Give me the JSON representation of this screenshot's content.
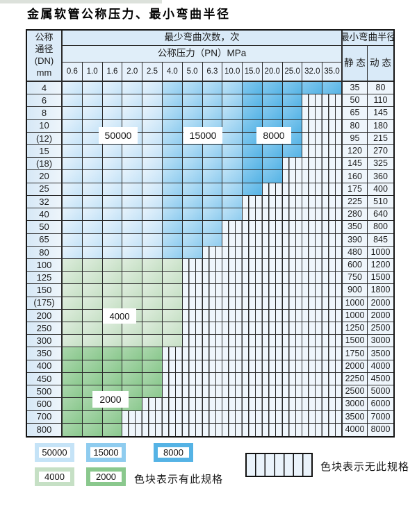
{
  "page": {
    "title": "金属软管公称压力、最小弯曲半径"
  },
  "table": {
    "header": {
      "dn_lines": [
        "公称",
        "通径",
        "(DN)",
        "mm"
      ],
      "bend_cycles": "最少弯曲次数，次",
      "pressure": "公称压力（PN）MPa",
      "radius": "最小弯曲半径",
      "static_col": "静 态",
      "dynamic_col": "动 态"
    },
    "pressure_columns": [
      "0.6",
      "1.0",
      "1.6",
      "2.0",
      "2.5",
      "4.0",
      "5.0",
      "6.3",
      "10.0",
      "15.0",
      "20.0",
      "25.0",
      "32.0",
      "35.0"
    ],
    "rows": [
      {
        "dn": "4",
        "zone": "blue",
        "colored": 14,
        "static": "35",
        "dynamic": "80"
      },
      {
        "dn": "6",
        "zone": "blue",
        "colored": 12,
        "static": "50",
        "dynamic": "110"
      },
      {
        "dn": "8",
        "zone": "blue",
        "colored": 12,
        "static": "65",
        "dynamic": "145"
      },
      {
        "dn": "10",
        "zone": "blue",
        "colored": 12,
        "static": "80",
        "dynamic": "180"
      },
      {
        "dn": "(12)",
        "zone": "blue",
        "colored": 12,
        "static": "95",
        "dynamic": "215"
      },
      {
        "dn": "15",
        "zone": "blue",
        "colored": 12,
        "static": "120",
        "dynamic": "270"
      },
      {
        "dn": "(18)",
        "zone": "blue",
        "colored": 11,
        "static": "145",
        "dynamic": "325"
      },
      {
        "dn": "20",
        "zone": "blue",
        "colored": 11,
        "static": "160",
        "dynamic": "360"
      },
      {
        "dn": "25",
        "zone": "blue",
        "colored": 10,
        "static": "175",
        "dynamic": "400"
      },
      {
        "dn": "32",
        "zone": "blue",
        "colored": 9,
        "static": "225",
        "dynamic": "510"
      },
      {
        "dn": "40",
        "zone": "blue",
        "colored": 9,
        "static": "280",
        "dynamic": "640"
      },
      {
        "dn": "50",
        "zone": "blue",
        "colored": 8,
        "static": "350",
        "dynamic": "800"
      },
      {
        "dn": "65",
        "zone": "blue",
        "colored": 8,
        "static": "390",
        "dynamic": "845"
      },
      {
        "dn": "80",
        "zone": "blue",
        "colored": 7,
        "static": "480",
        "dynamic": "1000"
      },
      {
        "dn": "100",
        "zone": "z4000",
        "colored": 6,
        "static": "600",
        "dynamic": "1200"
      },
      {
        "dn": "125",
        "zone": "z4000",
        "colored": 6,
        "static": "750",
        "dynamic": "1500"
      },
      {
        "dn": "150",
        "zone": "z4000",
        "colored": 6,
        "static": "900",
        "dynamic": "1800"
      },
      {
        "dn": "(175)",
        "zone": "z4000",
        "colored": 6,
        "static": "1000",
        "dynamic": "2000"
      },
      {
        "dn": "200",
        "zone": "z4000",
        "colored": 6,
        "static": "1000",
        "dynamic": "2000"
      },
      {
        "dn": "250",
        "zone": "z4000",
        "colored": 6,
        "static": "1250",
        "dynamic": "2500"
      },
      {
        "dn": "300",
        "zone": "z4000",
        "colored": 6,
        "static": "1500",
        "dynamic": "3000"
      },
      {
        "dn": "350",
        "zone": "z2000",
        "colored": 5,
        "static": "1750",
        "dynamic": "3500"
      },
      {
        "dn": "400",
        "zone": "z2000",
        "colored": 5,
        "static": "2000",
        "dynamic": "4000"
      },
      {
        "dn": "450",
        "zone": "z2000",
        "colored": 5,
        "static": "2250",
        "dynamic": "4500"
      },
      {
        "dn": "500",
        "zone": "z2000",
        "colored": 5,
        "static": "2500",
        "dynamic": "5000"
      },
      {
        "dn": "600",
        "zone": "z2000",
        "colored": 4,
        "static": "3000",
        "dynamic": "6000"
      },
      {
        "dn": "700",
        "zone": "z2000",
        "colored": 3,
        "static": "3500",
        "dynamic": "7000"
      },
      {
        "dn": "800",
        "zone": "z2000",
        "colored": 3,
        "static": "4000",
        "dynamic": "8000"
      }
    ]
  },
  "zones": {
    "blue_ranges": [
      {
        "from": 0,
        "to": 4,
        "key": "z50000"
      },
      {
        "from": 5,
        "to": 8,
        "key": "z15000"
      },
      {
        "from": 9,
        "to": 13,
        "key": "z8000"
      }
    ],
    "colors": {
      "z50000": {
        "light": "#e7f3fc",
        "dark": "#c5e3f7"
      },
      "z15000": {
        "light": "#bfe3f7",
        "dark": "#8fccef"
      },
      "z8000": {
        "light": "#86caef",
        "dark": "#55b3e5"
      },
      "z4000": {
        "light": "#dfedde",
        "dark": "#c6e0c5"
      },
      "z2000": {
        "light": "#abd7ad",
        "dark": "#8ac88d"
      }
    },
    "hatch": {
      "bg": "#eff6fc",
      "line": "#2b2b2b"
    }
  },
  "overlays": [
    {
      "id": "ovl-50000",
      "label": "50000"
    },
    {
      "id": "ovl-15000",
      "label": "15000"
    },
    {
      "id": "ovl-8000",
      "label": "8000"
    },
    {
      "id": "ovl-4000",
      "label": "4000"
    },
    {
      "id": "ovl-2000",
      "label": "2000"
    }
  ],
  "legend": {
    "items": [
      {
        "label": "50000",
        "key": "z50000"
      },
      {
        "label": "15000",
        "key": "z15000"
      },
      {
        "label": "8000",
        "key": "z8000"
      },
      {
        "label": "4000",
        "key": "z4000"
      },
      {
        "label": "2000",
        "key": "z2000"
      }
    ],
    "has_spec_note": "色块表示有此规格",
    "no_spec_note": "色块表示无此规格"
  }
}
